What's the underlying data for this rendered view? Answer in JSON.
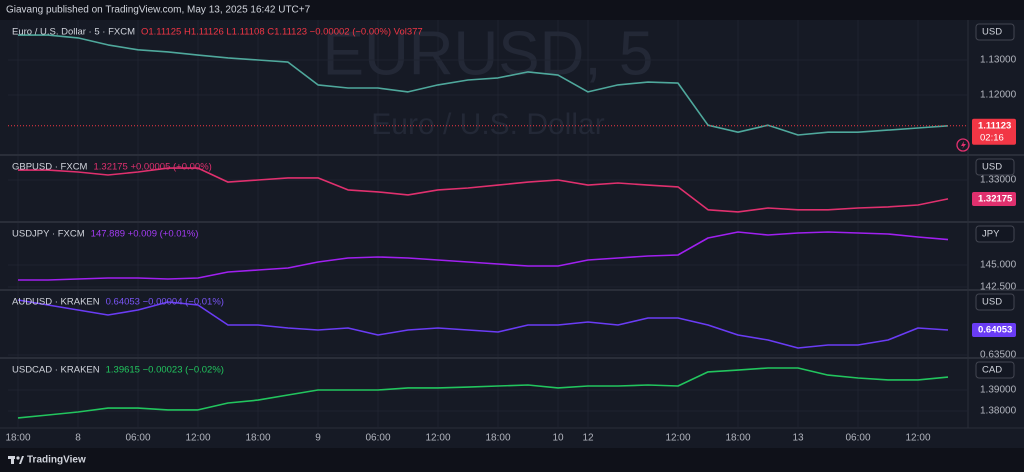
{
  "header": "Giavang published on TradingView.com, May 13, 2025 16:42 UTC+7",
  "footer": "TradingView",
  "chart_data": [
    {
      "type": "line",
      "watermark": {
        "symbol": "EURUSD, 5",
        "description": "Euro / U.S. Dollar"
      },
      "series": [
        {
          "name": "Euro / U.S. Dollar · 5 · FXCM",
          "quote": "O1.11125 H1.11126 L1.11108 C1.11123 −0.00002 (−0.00%) Vol377",
          "quote_color": "#f23645",
          "color": "#4fa89c",
          "values": [
            1.1371,
            1.1371,
            1.1363,
            1.1343,
            1.1329,
            1.1323,
            1.1314,
            1.1306,
            1.13,
            1.1294,
            1.1229,
            1.122,
            1.122,
            1.1209,
            1.1229,
            1.1243,
            1.1249,
            1.1266,
            1.1257,
            1.1209,
            1.1229,
            1.1237,
            1.1234,
            1.1114,
            1.1094,
            1.1114,
            1.1086,
            1.1094,
            1.1094,
            1.11,
            1.1106,
            1.11123
          ]
        }
      ],
      "ylim": [
        1.1029,
        1.1414
      ],
      "yticks": [
        {
          "value": 1.12,
          "label": "1.12000"
        },
        {
          "value": 1.13,
          "label": "1.13000"
        }
      ],
      "grid": true,
      "currency": "USD",
      "last_price": {
        "value": 1.11123,
        "label": "1.11123",
        "color": "#f23645"
      },
      "countdown": "02:16"
    },
    {
      "type": "line",
      "series": [
        {
          "name": "GBPUSD · FXCM",
          "quote": "1.32175 +0.00005 (+0.00%)",
          "quote_color": "#e0306e",
          "color": "#e0306e",
          "values": [
            1.3343,
            1.3343,
            1.3335,
            1.3322,
            1.3335,
            1.3352,
            1.3352,
            1.3291,
            1.33,
            1.3309,
            1.3309,
            1.3257,
            1.3248,
            1.3235,
            1.3257,
            1.3265,
            1.3278,
            1.3291,
            1.33,
            1.3278,
            1.3287,
            1.3278,
            1.327,
            1.317,
            1.3161,
            1.3178,
            1.317,
            1.317,
            1.3178,
            1.3183,
            1.3191,
            1.32175
          ]
        }
      ],
      "ylim": [
        1.3117,
        1.3409
      ],
      "yticks": [
        {
          "value": 1.33,
          "label": "1.33000"
        }
      ],
      "grid": true,
      "currency": "USD",
      "last_price": {
        "value": 1.32175,
        "label": "1.32175",
        "color": "#e0306e"
      }
    },
    {
      "type": "line",
      "series": [
        {
          "name": "USDJPY · FXCM",
          "quote": "147.889 +0.009 (+0.01%)",
          "quote_color": "#a43cf5",
          "color": "#a020f0",
          "values": [
            143.3,
            143.3,
            143.41,
            143.52,
            143.52,
            143.41,
            143.52,
            144.2,
            144.43,
            144.66,
            145.34,
            145.8,
            145.91,
            145.8,
            145.57,
            145.34,
            145.11,
            144.89,
            144.89,
            145.57,
            145.8,
            146.02,
            146.14,
            148.07,
            148.75,
            148.41,
            148.64,
            148.75,
            148.64,
            148.52,
            148.18,
            147.889
          ]
        }
      ],
      "ylim": [
        142.159,
        149.886
      ],
      "yticks": [
        {
          "value": 142.5,
          "label": "142.500"
        },
        {
          "value": 145,
          "label": "145.000"
        }
      ],
      "grid": true,
      "currency": "JPY"
    },
    {
      "type": "line",
      "series": [
        {
          "name": "AUDUSD · KRAKEN",
          "quote": "0.64053 −0.00004 (−0.01%)",
          "quote_color": "#7a55f7",
          "color": "#6a3cf5",
          "values": [
            0.64717,
            0.64606,
            0.64496,
            0.64385,
            0.64496,
            0.64673,
            0.64606,
            0.64164,
            0.64164,
            0.64097,
            0.64053,
            0.64097,
            0.63942,
            0.64053,
            0.64097,
            0.64053,
            0.64009,
            0.64164,
            0.64164,
            0.6423,
            0.64164,
            0.64319,
            0.64319,
            0.64164,
            0.63942,
            0.63832,
            0.63655,
            0.63721,
            0.63721,
            0.63832,
            0.64097,
            0.64053
          ]
        }
      ],
      "ylim": [
        0.63434,
        0.64938
      ],
      "yticks": [
        {
          "value": 0.635,
          "label": "0.63500"
        }
      ],
      "grid": true,
      "currency": "USD",
      "last_price": {
        "value": 0.64053,
        "label": "0.64053",
        "color": "#6a3cf5"
      }
    },
    {
      "type": "line",
      "categories": [
        "18:00",
        null,
        "8",
        null,
        "06:00",
        null,
        "12:00",
        null,
        "18:00",
        null,
        "9",
        null,
        "06:00",
        null,
        "12:00",
        null,
        "18:00",
        null,
        "10",
        "12",
        null,
        null,
        "12:00",
        null,
        "18:00",
        null,
        "13",
        null,
        "06:00",
        null,
        "12:00",
        null
      ],
      "series": [
        {
          "name": "USDCAD · KRAKEN",
          "quote": "1.39615 −0.00023 (−0.02%)",
          "quote_color": "#22c55e",
          "color": "#22c55e",
          "values": [
            1.3767,
            1.3781,
            1.3795,
            1.3814,
            1.3814,
            1.3805,
            1.3805,
            1.3838,
            1.3852,
            1.3876,
            1.39,
            1.39,
            1.39,
            1.391,
            1.391,
            1.3914,
            1.3919,
            1.3924,
            1.391,
            1.3919,
            1.3919,
            1.3924,
            1.3919,
            1.3986,
            1.3995,
            1.4005,
            1.4005,
            1.3971,
            1.3957,
            1.3948,
            1.3948,
            1.39615
          ]
        }
      ],
      "ylim": [
        1.3719,
        1.40524
      ],
      "yticks": [
        {
          "value": 1.38,
          "label": "1.38000"
        },
        {
          "value": 1.39,
          "label": "1.39000"
        }
      ],
      "grid": true,
      "currency": "CAD"
    }
  ]
}
